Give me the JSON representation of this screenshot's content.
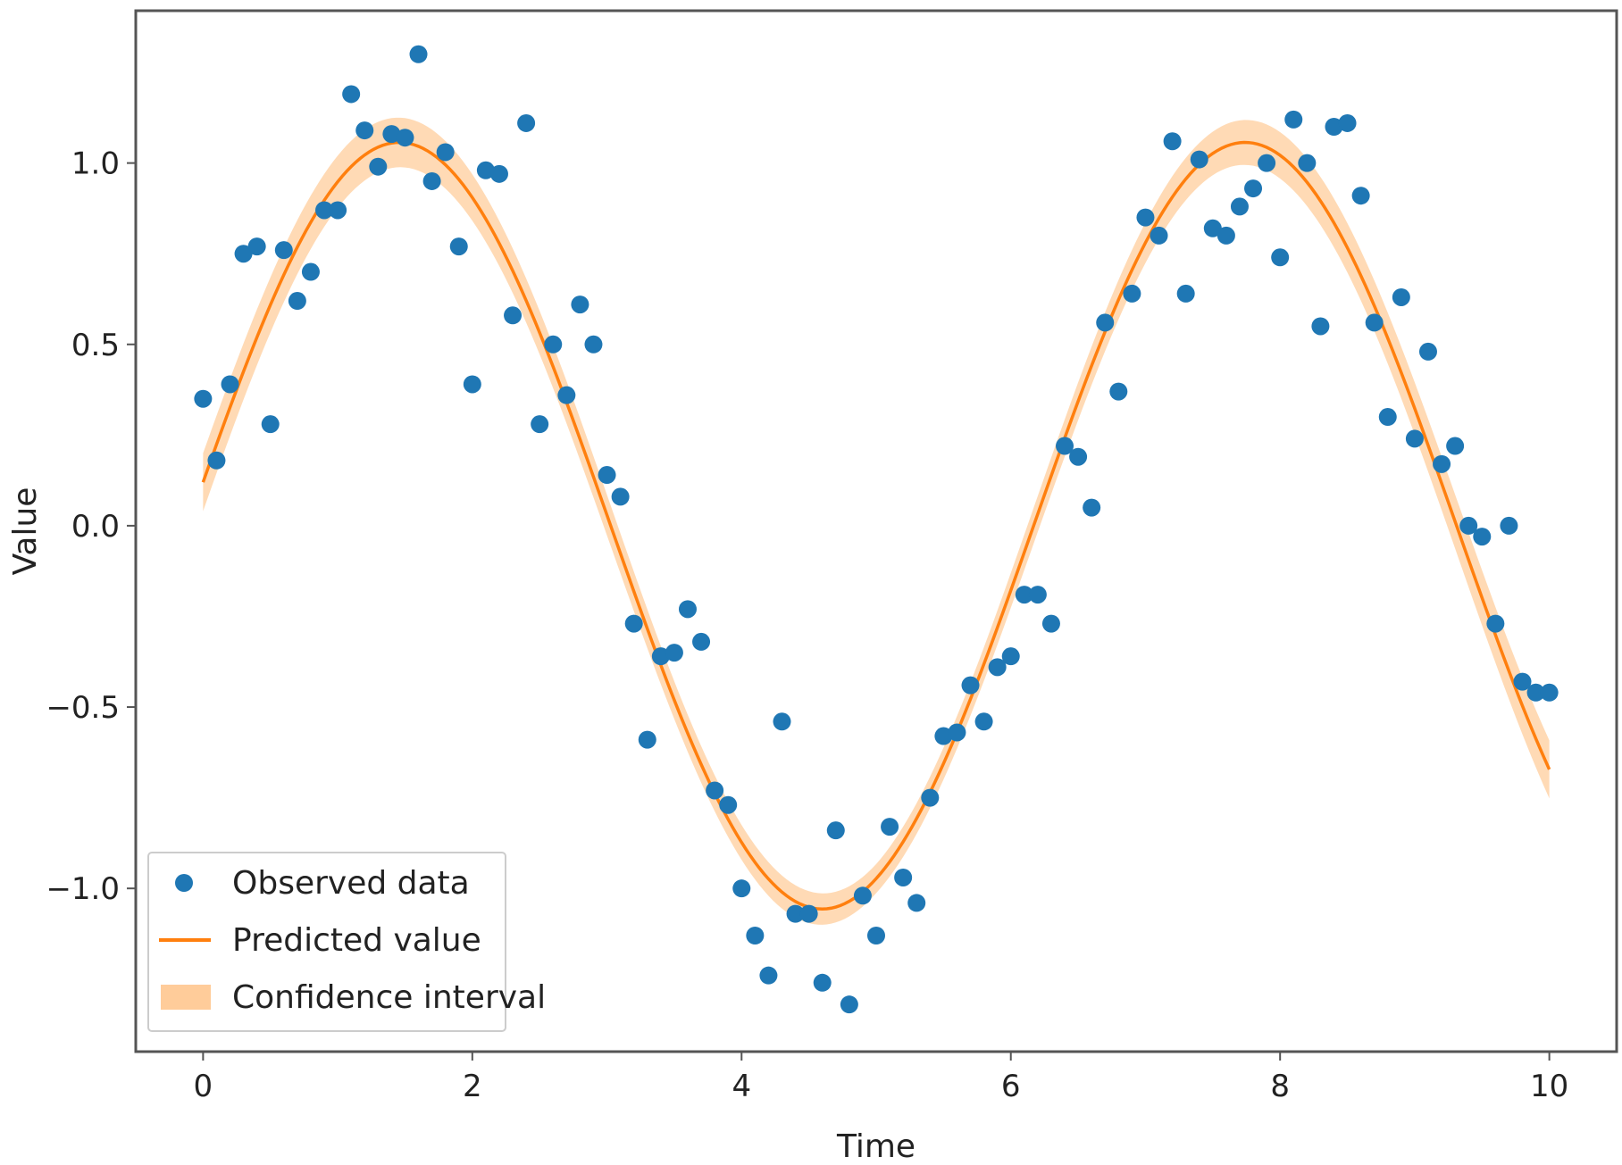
{
  "chart_data": {
    "type": "scatter",
    "title": "",
    "xlabel": "Time",
    "ylabel": "Value",
    "xlim": [
      -0.5,
      10.5
    ],
    "ylim": [
      -1.45,
      1.42
    ],
    "xticks": [
      0,
      2,
      4,
      6,
      8,
      10
    ],
    "xtick_labels": [
      "0",
      "2",
      "4",
      "6",
      "8",
      "10"
    ],
    "yticks": [
      -1.0,
      -0.5,
      0.0,
      0.5,
      1.0
    ],
    "ytick_labels": [
      "−1.0",
      "−0.5",
      "0.0",
      "0.5",
      "1.0"
    ],
    "grid": false,
    "legend_position": "lower-left",
    "colors": {
      "observed": "#1f77b4",
      "predicted": "#ff7f0e",
      "confidence": "#ffbb78",
      "axes": "#555555"
    },
    "series": [
      {
        "name": "Observed data",
        "kind": "scatter",
        "x": [
          0.0,
          0.1,
          0.2,
          0.3,
          0.4,
          0.5,
          0.6,
          0.7,
          0.8,
          0.9,
          1.0,
          1.1,
          1.2,
          1.3,
          1.4,
          1.5,
          1.6,
          1.7,
          1.8,
          1.9,
          2.0,
          2.1,
          2.2,
          2.3,
          2.4,
          2.5,
          2.6,
          2.7,
          2.8,
          2.9,
          3.0,
          3.1,
          3.2,
          3.3,
          3.4,
          3.5,
          3.6,
          3.7,
          3.8,
          3.9,
          4.0,
          4.1,
          4.2,
          4.3,
          4.4,
          4.5,
          4.6,
          4.7,
          4.8,
          4.9,
          5.0,
          5.1,
          5.2,
          5.3,
          5.4,
          5.5,
          5.6,
          5.7,
          5.8,
          5.9,
          6.0,
          6.1,
          6.2,
          6.3,
          6.4,
          6.5,
          6.6,
          6.7,
          6.8,
          6.9,
          7.0,
          7.1,
          7.2,
          7.3,
          7.4,
          7.5,
          7.6,
          7.7,
          7.8,
          7.9,
          8.0,
          8.1,
          8.2,
          8.3,
          8.4,
          8.5,
          8.6,
          8.7,
          8.8,
          8.9,
          9.0,
          9.1,
          9.2,
          9.3,
          9.4,
          9.5,
          9.6,
          9.7,
          9.8,
          9.9,
          10.0
        ],
        "y": [
          0.35,
          0.18,
          0.39,
          0.75,
          0.77,
          0.28,
          0.76,
          0.62,
          0.7,
          0.87,
          0.87,
          1.19,
          1.09,
          0.99,
          1.08,
          1.07,
          1.3,
          0.95,
          1.03,
          0.77,
          0.39,
          0.98,
          0.97,
          0.58,
          1.11,
          0.28,
          0.5,
          0.36,
          0.61,
          0.5,
          0.14,
          0.08,
          -0.27,
          -0.59,
          -0.36,
          -0.35,
          -0.23,
          -0.32,
          -0.73,
          -0.77,
          -1.0,
          -1.13,
          -1.24,
          -0.54,
          -1.07,
          -1.07,
          -1.26,
          -0.84,
          -1.32,
          -1.02,
          -1.13,
          -0.83,
          -0.97,
          -1.04,
          -0.75,
          -0.58,
          -0.57,
          -0.44,
          -0.54,
          -0.39,
          -0.36,
          -0.19,
          -0.19,
          -0.27,
          0.22,
          0.19,
          0.05,
          0.56,
          0.37,
          0.64,
          0.85,
          0.8,
          1.06,
          0.64,
          1.01,
          0.82,
          0.8,
          0.88,
          0.93,
          1.0,
          0.74,
          1.12,
          1.0,
          0.55,
          1.1,
          1.11,
          0.91,
          0.56,
          0.3,
          0.63,
          0.24,
          0.48,
          0.17,
          0.22,
          0.0,
          -0.03,
          -0.27,
          0.0,
          -0.43,
          -0.46,
          -0.46
        ]
      },
      {
        "name": "Predicted value",
        "kind": "line",
        "function": "1.05*sin(x)+0.12*cos(x)",
        "x_range": [
          0,
          10
        ]
      },
      {
        "name": "Confidence interval",
        "kind": "band",
        "half_width": [
          0.08,
          0.04,
          0.08
        ]
      }
    ]
  }
}
